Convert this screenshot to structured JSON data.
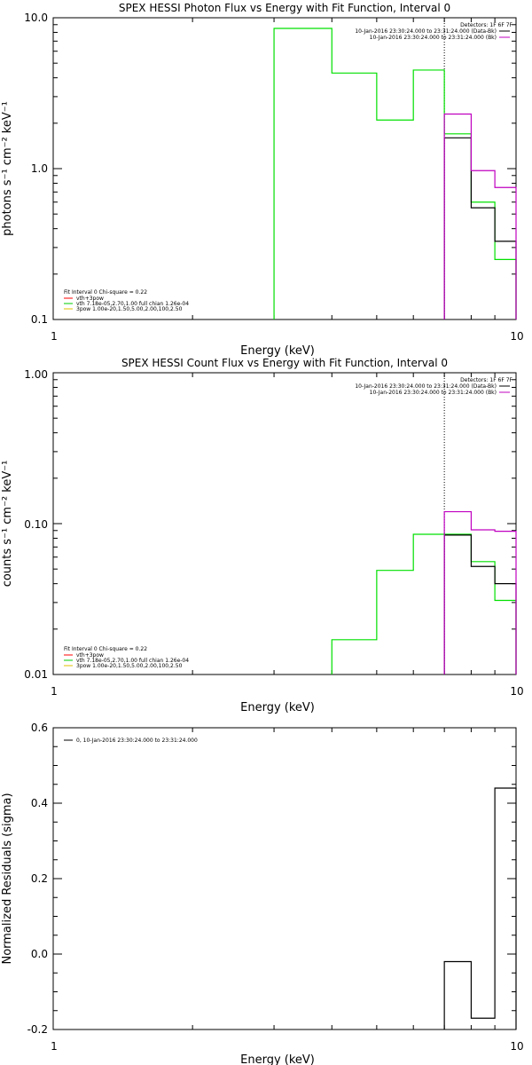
{
  "chart_data": [
    {
      "type": "line",
      "title": "SPEX HESSI Photon Flux vs Energy with Fit Function, Interval 0",
      "xlabel": "Energy (keV)",
      "ylabel": "photons s⁻¹ cm⁻² keV⁻¹",
      "xscale": "log",
      "yscale": "log",
      "xlim": [
        1,
        10
      ],
      "ylim": [
        0.1,
        10.0
      ],
      "x_ticks": [
        "1",
        "10"
      ],
      "y_ticks": [
        "0.1",
        "1.0",
        "10.0"
      ],
      "vline_x": 7.0,
      "legend_right": {
        "header": "Detectors: 1F 6F 7F",
        "entries": [
          {
            "label": "10-Jan-2016 23:30:24.000 to 23:31:24.000 (Data-Bk)",
            "color": "#000000"
          },
          {
            "label": "10-Jan-2016 23:30:24.000 to 23:31:24.000 (Bk)",
            "color": "#c000c0"
          }
        ]
      },
      "legend_left": {
        "header": "Fit Interval 0   Chi-square = 0.22",
        "entries": [
          {
            "label": "vth+3pow",
            "color": "#ff0000"
          },
          {
            "label": "vth 7.18e-05,2.70,1.00  full chian 1.26e-04",
            "color": "#00cc00"
          },
          {
            "label": "3pow 1.00e-20,1.50,5.00,2.00,100,2.50",
            "color": "#e0c000"
          }
        ]
      },
      "series": [
        {
          "name": "vth+3pow",
          "color": "#00e000",
          "steps": [
            [
              3,
              4,
              8.5
            ],
            [
              4,
              5,
              4.3
            ],
            [
              5,
              6,
              2.1
            ],
            [
              6,
              7,
              4.5
            ],
            [
              7,
              8,
              1.7
            ],
            [
              8,
              9,
              0.6
            ],
            [
              9,
              10,
              0.25
            ]
          ]
        },
        {
          "name": "Data-Bk",
          "color": "#000000",
          "steps": [
            [
              7,
              8,
              1.6
            ],
            [
              8,
              9,
              0.55
            ],
            [
              9,
              10,
              0.33
            ]
          ]
        },
        {
          "name": "Bk",
          "color": "#c000c0",
          "steps": [
            [
              7,
              8,
              2.3
            ],
            [
              8,
              9,
              0.97
            ],
            [
              9,
              10,
              0.75
            ]
          ]
        }
      ]
    },
    {
      "type": "line",
      "title": "SPEX HESSI Count Flux vs Energy with Fit Function, Interval 0",
      "xlabel": "Energy (keV)",
      "ylabel": "counts s⁻¹ cm⁻² keV⁻¹",
      "xscale": "log",
      "yscale": "log",
      "xlim": [
        1,
        10
      ],
      "ylim": [
        0.01,
        1.0
      ],
      "x_ticks": [
        "1",
        "10"
      ],
      "y_ticks": [
        "0.01",
        "0.10",
        "1.00"
      ],
      "vline_x": 7.0,
      "legend_right": {
        "header": "Detectors: 1F 6F 7F",
        "entries": [
          {
            "label": "10-Jan-2016 23:30:24.000 to 23:31:24.000 (Data-Bk)",
            "color": "#000000"
          },
          {
            "label": "10-Jan-2016 23:30:24.000 to 23:31:24.000 (Bk)",
            "color": "#c000c0"
          }
        ]
      },
      "legend_left": {
        "header": "Fit Interval 0   Chi-square = 0.22",
        "entries": [
          {
            "label": "vth+3pow",
            "color": "#ff0000"
          },
          {
            "label": "vth 7.18e-05,2.70,1.00  full chian 1.26e-04",
            "color": "#00cc00"
          },
          {
            "label": "3pow 1.00e-20,1.50,5.00,2.00,100,2.50",
            "color": "#e0c000"
          }
        ]
      },
      "series": [
        {
          "name": "vth+3pow",
          "color": "#00e000",
          "steps": [
            [
              4,
              5,
              0.017
            ],
            [
              5,
              6,
              0.049
            ],
            [
              6,
              7,
              0.085
            ],
            [
              7,
              8,
              0.085
            ],
            [
              8,
              9,
              0.056
            ],
            [
              9,
              10,
              0.031
            ]
          ]
        },
        {
          "name": "Data-Bk",
          "color": "#000000",
          "steps": [
            [
              7,
              8,
              0.084
            ],
            [
              8,
              9,
              0.052
            ],
            [
              9,
              10,
              0.04
            ]
          ]
        },
        {
          "name": "Bk",
          "color": "#c000c0",
          "steps": [
            [
              7,
              8,
              0.12
            ],
            [
              8,
              9,
              0.091
            ],
            [
              9,
              10,
              0.089
            ]
          ]
        }
      ]
    },
    {
      "type": "line",
      "title": "",
      "xlabel": "Energy (keV)",
      "ylabel": "Normalized Residuals (sigma)",
      "xscale": "log",
      "yscale": "linear",
      "xlim": [
        1,
        10
      ],
      "ylim": [
        -0.2,
        0.6
      ],
      "x_ticks": [
        "1",
        "10"
      ],
      "y_ticks": [
        "-0.2",
        "0.0",
        "0.2",
        "0.4",
        "0.6"
      ],
      "legend_left": {
        "entries": [
          {
            "label": "0, 10-Jan-2016 23:30:24.000 to 23:31:24.000",
            "color": "#000000"
          }
        ]
      },
      "series": [
        {
          "name": "residuals",
          "color": "#000000",
          "steps": [
            [
              7,
              8,
              -0.02
            ],
            [
              8,
              9,
              -0.17
            ],
            [
              9,
              10,
              0.44
            ]
          ]
        }
      ]
    }
  ]
}
